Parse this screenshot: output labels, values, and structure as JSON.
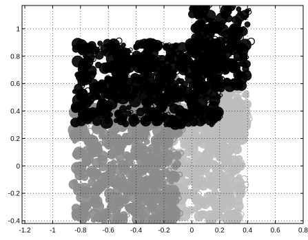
{
  "chart_data": {
    "type": "scatter",
    "title": "",
    "xlabel": "",
    "ylabel": "",
    "xlim": [
      -1.22,
      0.8
    ],
    "ylim": [
      -0.42,
      1.17
    ],
    "grid": true,
    "x_ticks": [
      -1.2,
      -1,
      -0.8,
      -0.6,
      -0.4,
      -0.2,
      0,
      0.2,
      0.4,
      0.6,
      0.8
    ],
    "x_tick_labels": [
      "-1.2",
      "-1",
      "-0.8",
      "-0.6",
      "-0.4",
      "-0.2",
      "0",
      "0.2",
      "0.4",
      "0.6",
      "0.8"
    ],
    "y_ticks": [
      -0.4,
      -0.2,
      0,
      0.2,
      0.4,
      0.6,
      0.8,
      1
    ],
    "y_tick_labels": [
      "-0.4",
      "-0.2",
      "0",
      "0.2",
      "0.4",
      "0.6",
      "0.8",
      "1"
    ],
    "series": [
      {
        "color": "#bdbdbd",
        "regions": [
          {
            "x": [
              -0.2,
              0.35
            ],
            "y": [
              -0.4,
              0.55
            ]
          },
          {
            "x": [
              -0.05,
              0.4
            ],
            "y": [
              0.15,
              0.6
            ]
          }
        ]
      },
      {
        "color": "#8c8c8c",
        "regions": [
          {
            "x": [
              -0.85,
              -0.1
            ],
            "y": [
              -0.4,
              0.45
            ]
          },
          {
            "x": [
              -0.5,
              -0.1
            ],
            "y": [
              0.35,
              0.65
            ]
          }
        ]
      },
      {
        "color": "#000000",
        "regions": [
          {
            "x": [
              -0.85,
              0.2
            ],
            "y": [
              0.3,
              0.9
            ]
          },
          {
            "x": [
              0.0,
              0.4
            ],
            "y": [
              0.55,
              1.16
            ]
          }
        ]
      }
    ]
  }
}
